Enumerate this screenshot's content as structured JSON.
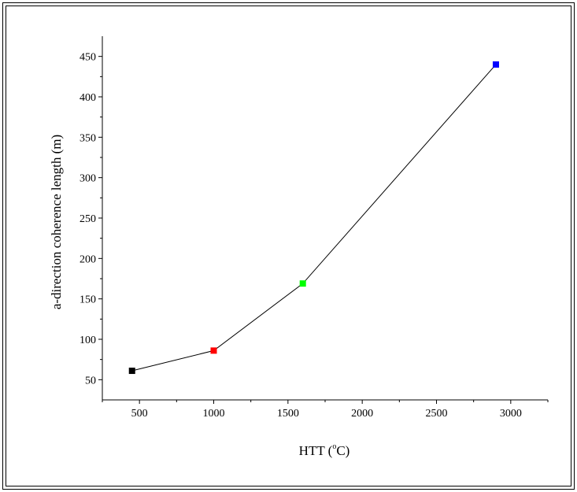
{
  "chart_data": {
    "type": "line",
    "title": "",
    "xlabel": "HTT (°C)",
    "xlabel_parts": {
      "main": "HTT (",
      "sup": "o",
      "tail": "C)"
    },
    "ylabel": "a-direction coherence length (m)",
    "xlim": [
      250,
      3250
    ],
    "ylim": [
      25,
      475
    ],
    "x_ticks": [
      500,
      1000,
      1500,
      2000,
      2500,
      3000
    ],
    "y_ticks": [
      50,
      100,
      150,
      200,
      250,
      300,
      350,
      400,
      450
    ],
    "grid": false,
    "legend": "none",
    "line_color": "#000000",
    "points": [
      {
        "x": 450,
        "y": 61,
        "color": "#000000"
      },
      {
        "x": 1000,
        "y": 86,
        "color": "#ff0000"
      },
      {
        "x": 1600,
        "y": 169,
        "color": "#00ff00"
      },
      {
        "x": 2900,
        "y": 440,
        "color": "#0000ff"
      }
    ]
  }
}
